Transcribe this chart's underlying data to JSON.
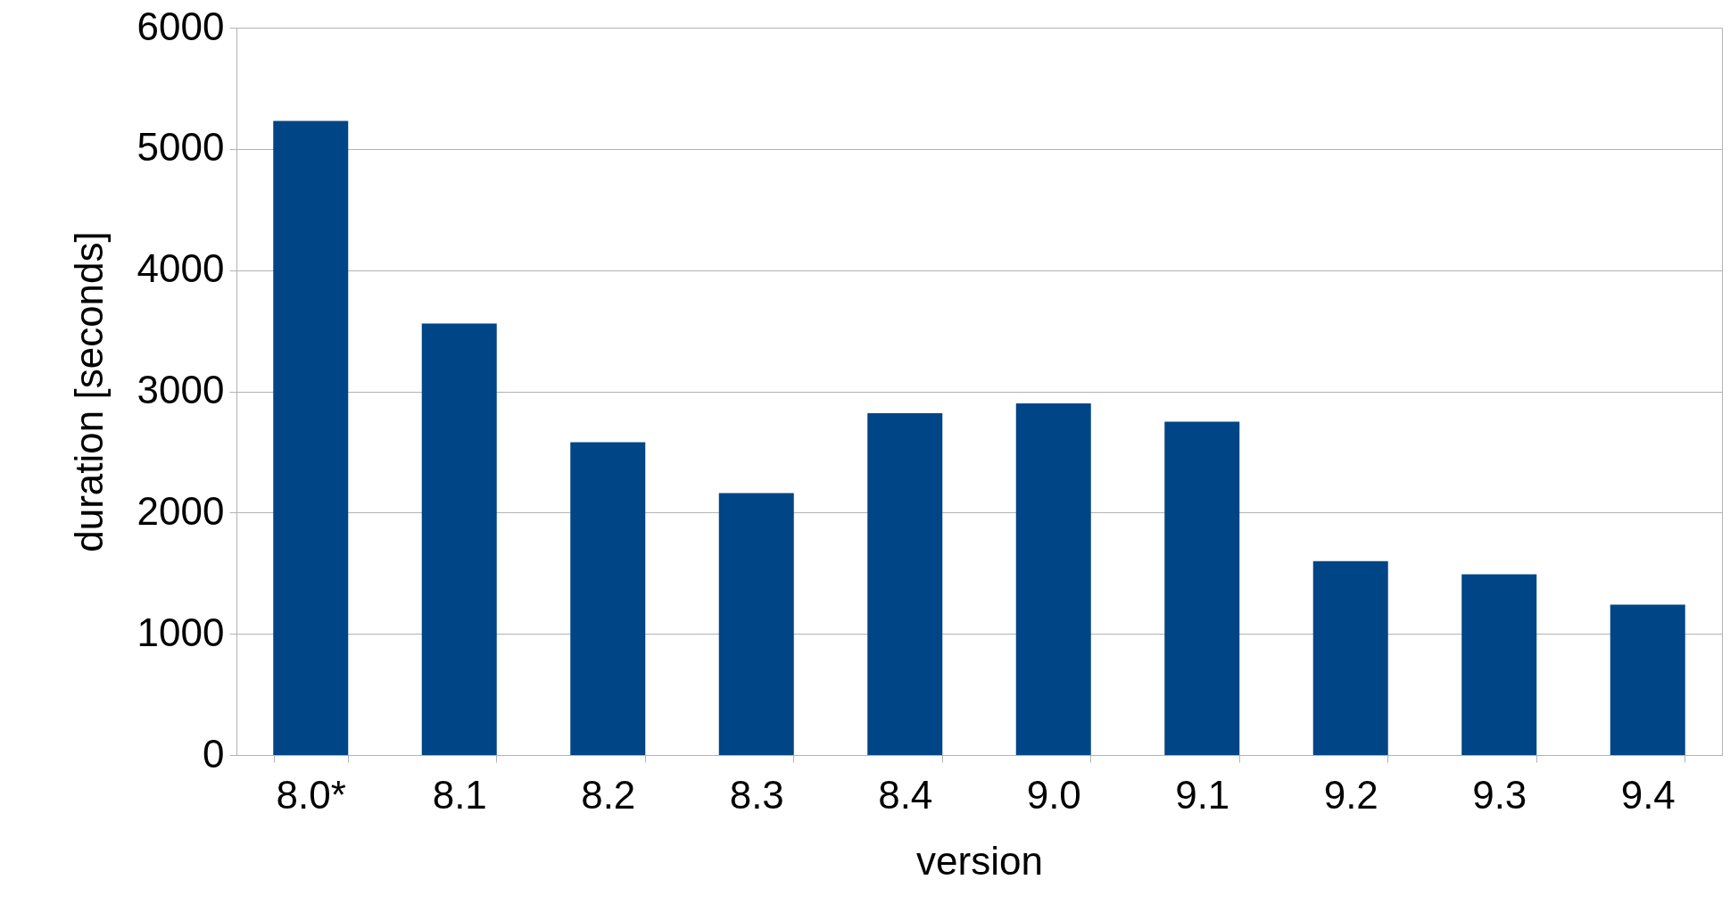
{
  "chart_data": {
    "type": "bar",
    "xlabel": "version",
    "ylabel": "duration [seconds]",
    "categories": [
      "8.0*",
      "8.1",
      "8.2",
      "8.3",
      "8.4",
      "9.0",
      "9.1",
      "9.2",
      "9.3",
      "9.4"
    ],
    "values": [
      5230,
      3560,
      2580,
      2160,
      2820,
      2900,
      2750,
      1600,
      1490,
      1240
    ],
    "color": "#004586",
    "ylim": [
      0,
      6000
    ],
    "yticks": [
      0,
      1000,
      2000,
      3000,
      4000,
      5000,
      6000
    ],
    "grid": "y"
  }
}
